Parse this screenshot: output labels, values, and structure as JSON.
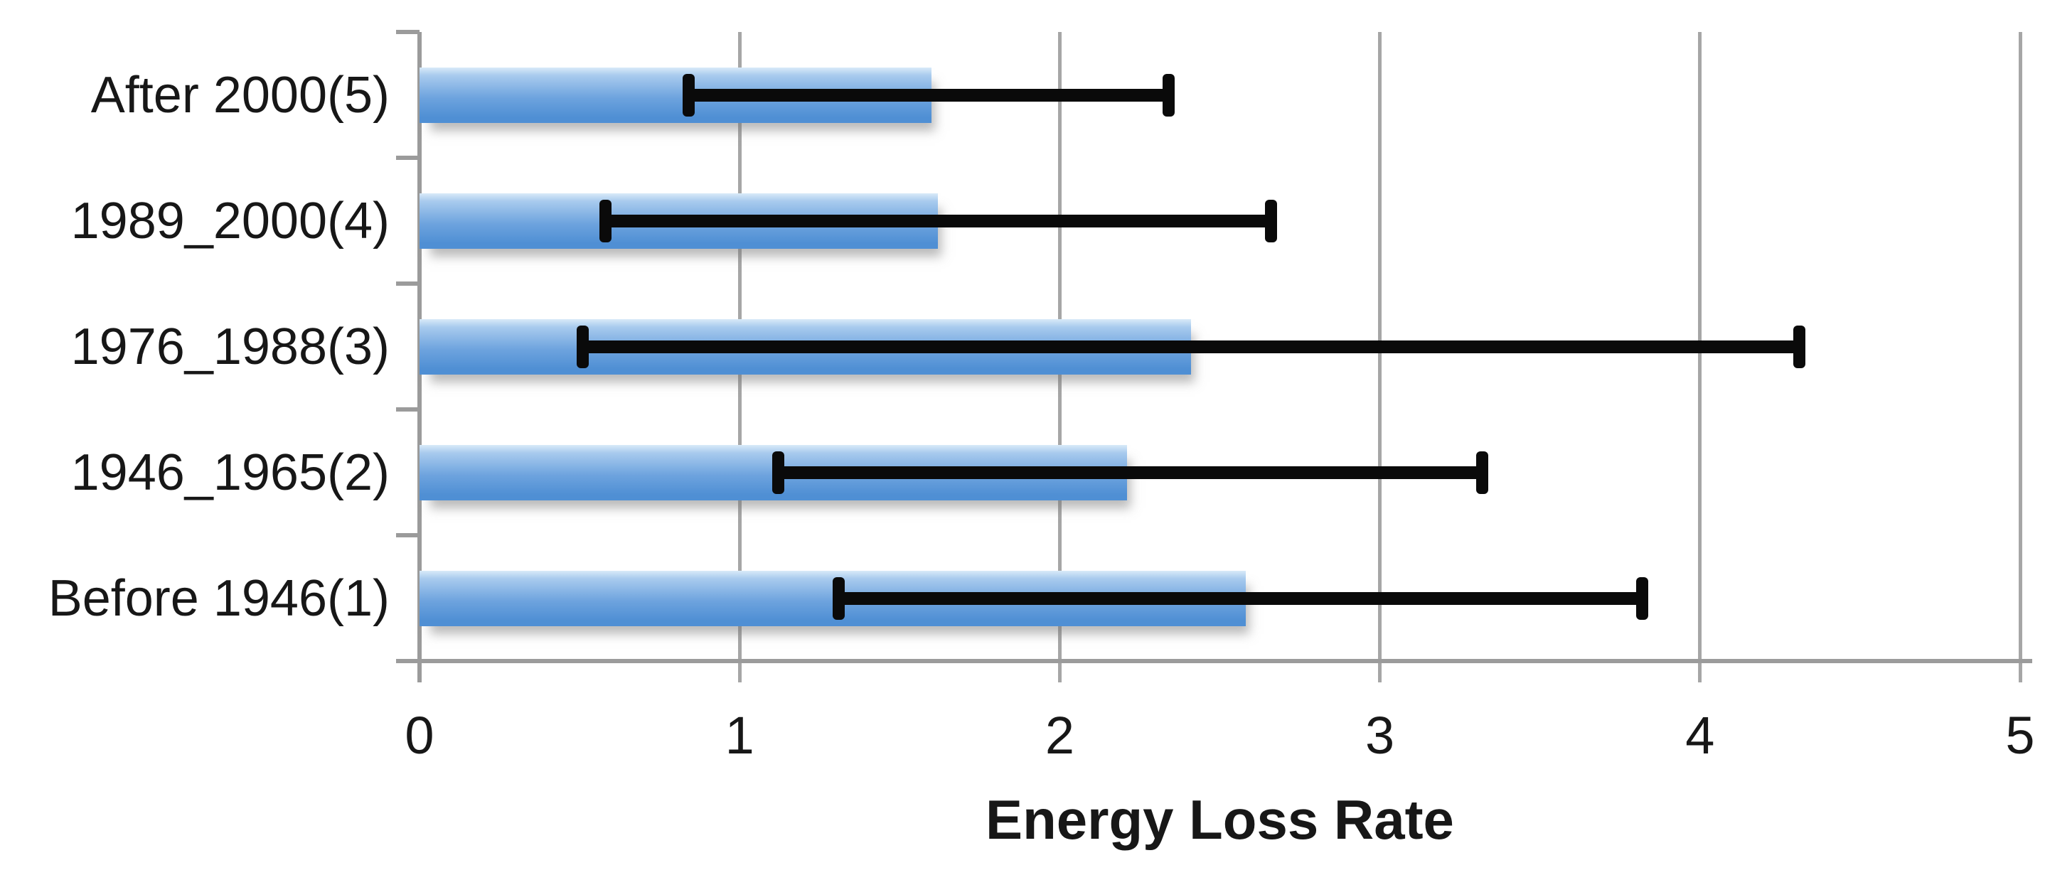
{
  "chart_data": {
    "type": "bar",
    "orientation": "horizontal",
    "title": "",
    "xlabel": "Energy Loss Rate",
    "ylabel": "",
    "xlim": [
      0,
      5
    ],
    "x_ticks": [
      0,
      1,
      2,
      3,
      4,
      5
    ],
    "grid": true,
    "legend": false,
    "categories": [
      "After 2000(5)",
      "1989_2000(4)",
      "1976_1988(3)",
      "1946_1965(2)",
      "Before 1946(1)"
    ],
    "series": [
      {
        "name": "Energy Loss Rate",
        "values": [
          1.6,
          1.62,
          2.41,
          2.21,
          2.58
        ],
        "error_low": [
          0.84,
          0.58,
          0.51,
          1.12,
          1.31
        ],
        "error_high": [
          2.34,
          2.66,
          4.31,
          3.32,
          3.82
        ]
      }
    ],
    "colors": {
      "bar_fill": "#6fa3dc",
      "bar_gradient_top": "#d9eaf9",
      "bar_gradient_light": "#a9cbee",
      "bar_gradient_mid": "#6da3de",
      "bar_gradient_bottom": "#4f8fd4",
      "error_bar": "#0a0a0a",
      "gridline": "#a6a6a6",
      "axis_line": "#9b9b9b",
      "text": "#171717",
      "background": "#ffffff"
    }
  }
}
